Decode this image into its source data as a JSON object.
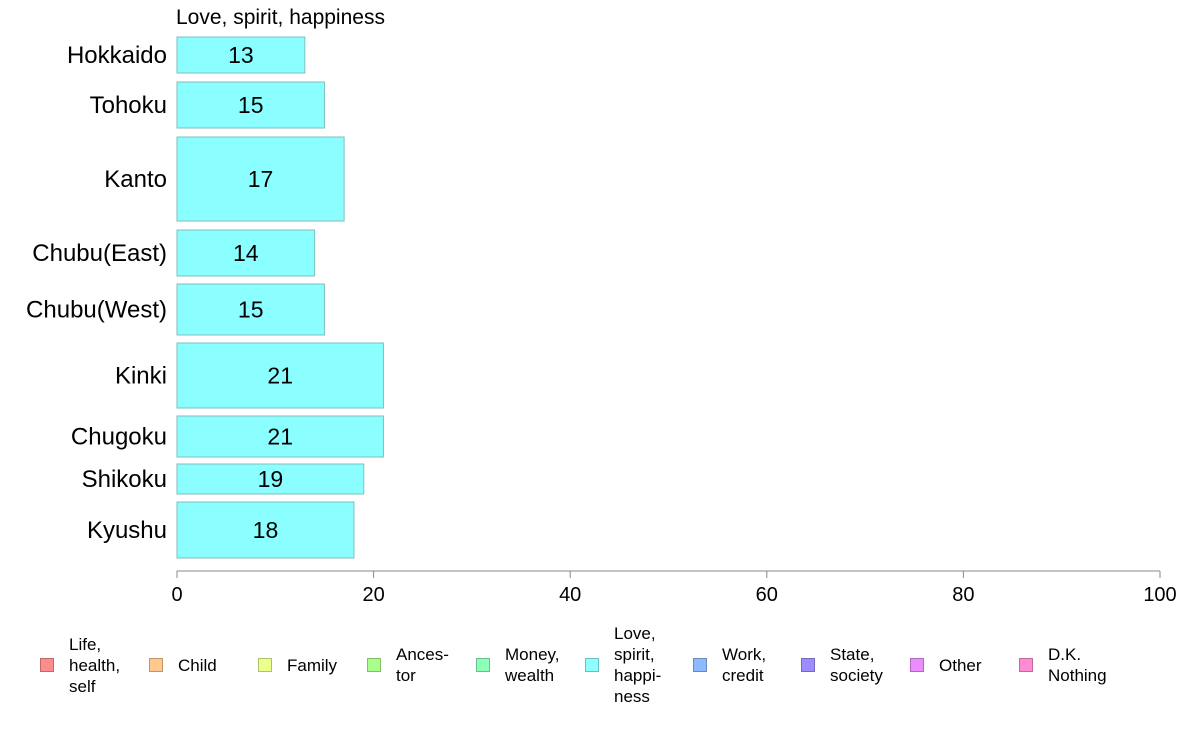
{
  "chart_data": {
    "type": "bar",
    "orientation": "horizontal",
    "title": "Love, spirit, happiness",
    "categories": [
      "Hokkaido",
      "Tohoku",
      "Kanto",
      "Chubu(East)",
      "Chubu(West)",
      "Kinki",
      "Chugoku",
      "Shikoku",
      "Kyushu"
    ],
    "values": [
      13,
      15,
      17,
      14,
      15,
      21,
      21,
      19,
      18
    ],
    "data_labels": [
      "13",
      "15",
      "17",
      "14",
      "15",
      "21",
      "21",
      "19",
      "18"
    ],
    "xlim": [
      0,
      100
    ],
    "x_ticks": [
      "0",
      "20",
      "40",
      "60",
      "80",
      "100"
    ],
    "grid": false,
    "legend_position": "bottom",
    "bar_color": "#8BFFFF",
    "legend": [
      {
        "label": "Life,\nhealth,\nself",
        "color": "#FF8C8C"
      },
      {
        "label": "Child",
        "color": "#FFC88C"
      },
      {
        "label": "Family",
        "color": "#EBFF8C"
      },
      {
        "label": "Ances-\ntor",
        "color": "#AAFF8C"
      },
      {
        "label": "Money,\nwealth",
        "color": "#8CFFB9"
      },
      {
        "label": "Love,\nspirit,\nhappi-\nness",
        "color": "#8CFFFF"
      },
      {
        "label": "Work,\ncredit",
        "color": "#8CB9FF"
      },
      {
        "label": "State,\nsociety",
        "color": "#9B8CFF"
      },
      {
        "label": "Other",
        "color": "#EB8CFF"
      },
      {
        "label": "D.K.\nNothing",
        "color": "#FF8CD2"
      }
    ]
  }
}
